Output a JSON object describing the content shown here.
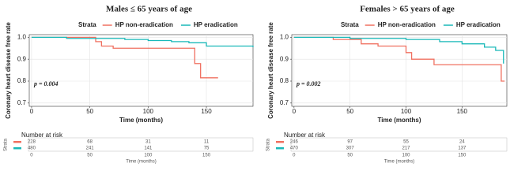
{
  "chart_data": [
    {
      "type": "step",
      "title": "Males ≤ 65 years of age",
      "ylabel": "Coronary heart disease free rate",
      "xlabel": "Time (months)",
      "legend_title": "Strata",
      "annotation": "p = 0.004",
      "xlim": [
        -2,
        190
      ],
      "xticks": [
        0,
        50,
        100,
        150
      ],
      "ylim": [
        0.685,
        1.012
      ],
      "yticks": [
        0.7,
        0.8,
        0.9,
        {
          "value": 1,
          "label": "1.0"
        }
      ],
      "grid": true,
      "series": [
        {
          "name": "HP non-eradication",
          "color": "#f07060",
          "x": [
            0,
            55,
            60,
            70,
            140,
            145,
            160
          ],
          "values": [
            1,
            0.98,
            0.96,
            0.95,
            0.88,
            0.815,
            0.815
          ]
        },
        {
          "name": "HP eradication",
          "color": "#19b8b8",
          "x": [
            0,
            30,
            80,
            100,
            120,
            135,
            150,
            190
          ],
          "values": [
            1,
            0.995,
            0.99,
            0.985,
            0.98,
            0.975,
            0.96,
            0.955
          ]
        }
      ],
      "risk_table": {
        "title": "Number at risk",
        "label": "Strata",
        "xlabel": "Time (months)",
        "times": [
          0,
          50,
          100,
          150
        ],
        "rows": [
          [
            228,
            68,
            31,
            11
          ],
          [
            480,
            241,
            141,
            75
          ]
        ]
      }
    },
    {
      "type": "step",
      "title": "Females > 65 years of age",
      "ylabel": "Coronary heart disease free rate",
      "xlabel": "Time (months)",
      "legend_title": "Strata",
      "annotation": "p = 0.002",
      "xlim": [
        -2,
        190
      ],
      "xticks": [
        0,
        50,
        100,
        150
      ],
      "ylim": [
        0.685,
        1.012
      ],
      "yticks": [
        0.7,
        0.8,
        0.9,
        {
          "value": 1,
          "label": "1.0"
        }
      ],
      "grid": true,
      "series": [
        {
          "name": "HP non-eradication",
          "color": "#f07060",
          "x": [
            0,
            35,
            60,
            75,
            100,
            105,
            125,
            185,
            188
          ],
          "values": [
            1,
            0.99,
            0.97,
            0.96,
            0.93,
            0.9,
            0.875,
            0.8,
            0.8
          ]
        },
        {
          "name": "HP eradication",
          "color": "#19b8b8",
          "x": [
            0,
            50,
            100,
            130,
            150,
            170,
            180,
            187
          ],
          "values": [
            1,
            0.995,
            0.99,
            0.98,
            0.97,
            0.955,
            0.94,
            0.88
          ]
        }
      ],
      "risk_table": {
        "title": "Number at risk",
        "label": "Strata",
        "xlabel": "Time (months)",
        "times": [
          0,
          50,
          100,
          150
        ],
        "rows": [
          [
            246,
            97,
            55,
            24
          ],
          [
            470,
            307,
            217,
            137
          ]
        ]
      }
    }
  ]
}
